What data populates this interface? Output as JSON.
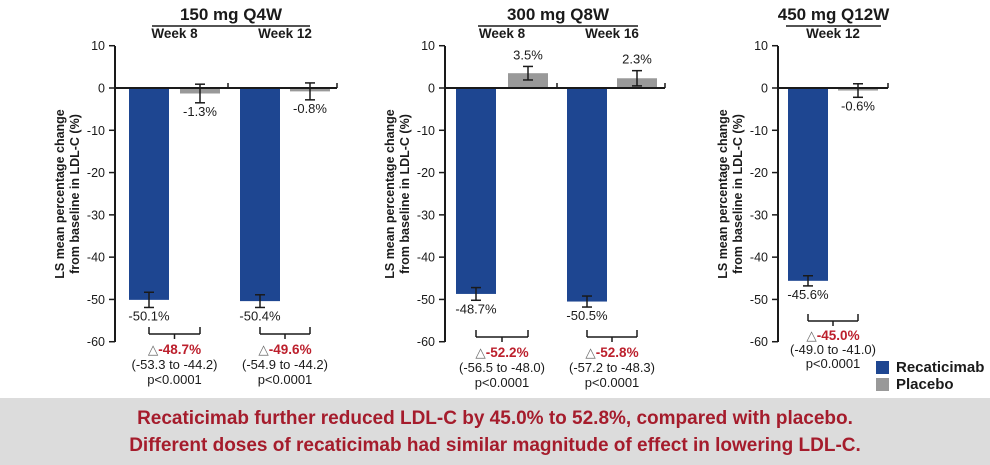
{
  "colors": {
    "recaticimab_blue": "#1e4691",
    "placebo_gray": "#999999",
    "axis_black": "#1a1a1a",
    "delta_red": "#bc1f2c",
    "banner_red": "#a51c2c",
    "banner_bg": "#dcdcdc",
    "triangle_gray": "#6b6b6b"
  },
  "symbols": {
    "triangle": "△"
  },
  "legend": {
    "items": [
      {
        "label": "Recaticimab",
        "color": "#1e4691"
      },
      {
        "label": "Placebo",
        "color": "#999999"
      }
    ]
  },
  "banner": {
    "line1": "Recaticimab further reduced LDL-C by 45.0% to 52.8%, compared with placebo.",
    "line2": "Different doses of recaticimab had similar magnitude of effect in lowering LDL-C."
  },
  "y_axis": {
    "label_line1": "LS mean percentage change",
    "label_line2": "from baseline in LDL-C (%)",
    "ticks": [
      10,
      0,
      -10,
      -20,
      -30,
      -40,
      -50,
      -60
    ],
    "ylim": [
      -60,
      10
    ]
  },
  "chart_data": [
    {
      "type": "bar",
      "title": "150 mg Q4W",
      "ylabel": "LS mean percentage change from baseline in LDL-C (%)",
      "ylim": [
        -60,
        10
      ],
      "yticks": [
        10,
        0,
        -10,
        -20,
        -30,
        -40,
        -50,
        -60
      ],
      "series_names": [
        "Recaticimab",
        "Placebo"
      ],
      "groups": [
        {
          "label": "Week 8",
          "recaticimab": {
            "value": -50.1,
            "err": 1.8,
            "label": "-50.1%"
          },
          "placebo": {
            "value": -1.3,
            "err": 2.2,
            "label": "-1.3%"
          },
          "difference": {
            "delta_label": "-48.7%",
            "ci_label": "(-53.3 to -44.2)",
            "p_label": "p<0.0001"
          }
        },
        {
          "label": "Week 12",
          "recaticimab": {
            "value": -50.4,
            "err": 1.5,
            "label": "-50.4%"
          },
          "placebo": {
            "value": -0.8,
            "err": 2.0,
            "label": "-0.8%"
          },
          "difference": {
            "delta_label": "-49.6%",
            "ci_label": "(-54.9 to -44.2)",
            "p_label": "p<0.0001"
          }
        }
      ]
    },
    {
      "type": "bar",
      "title": "300 mg Q8W",
      "ylabel": "LS mean percentage change from baseline in LDL-C (%)",
      "ylim": [
        -60,
        10
      ],
      "yticks": [
        10,
        0,
        -10,
        -20,
        -30,
        -40,
        -50,
        -60
      ],
      "series_names": [
        "Recaticimab",
        "Placebo"
      ],
      "groups": [
        {
          "label": "Week 8",
          "recaticimab": {
            "value": -48.7,
            "err": 1.5,
            "label": "-48.7%"
          },
          "placebo": {
            "value": 3.5,
            "err": 1.6,
            "label": "3.5%"
          },
          "difference": {
            "delta_label": "-52.2%",
            "ci_label": "(-56.5 to -48.0)",
            "p_label": "p<0.0001"
          }
        },
        {
          "label": "Week 16",
          "recaticimab": {
            "value": -50.5,
            "err": 1.3,
            "label": "-50.5%"
          },
          "placebo": {
            "value": 2.3,
            "err": 1.8,
            "label": "2.3%"
          },
          "difference": {
            "delta_label": "-52.8%",
            "ci_label": "(-57.2 to -48.3)",
            "p_label": "p<0.0001"
          }
        }
      ]
    },
    {
      "type": "bar",
      "title": "450 mg Q12W",
      "ylabel": "LS mean percentage change from baseline in LDL-C (%)",
      "ylim": [
        -60,
        10
      ],
      "yticks": [
        10,
        0,
        -10,
        -20,
        -30,
        -40,
        -50,
        -60
      ],
      "series_names": [
        "Recaticimab",
        "Placebo"
      ],
      "groups": [
        {
          "label": "Week 12",
          "recaticimab": {
            "value": -45.6,
            "err": 1.2,
            "label": "-45.6%"
          },
          "placebo": {
            "value": -0.6,
            "err": 1.6,
            "label": "-0.6%"
          },
          "difference": {
            "delta_label": "-45.0%",
            "ci_label": "(-49.0 to -41.0)",
            "p_label": "p<0.0001"
          }
        }
      ]
    }
  ]
}
